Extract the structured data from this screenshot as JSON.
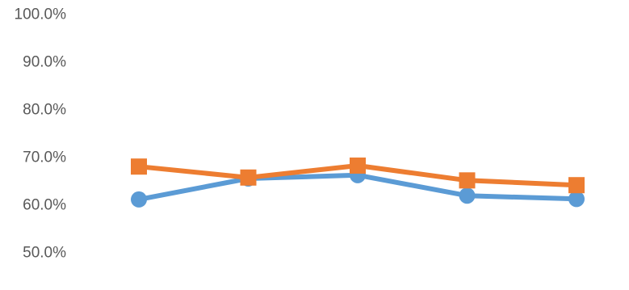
{
  "chart_data": {
    "type": "line",
    "x": [
      1,
      2,
      3,
      4,
      5
    ],
    "ylim": [
      0.5,
      1.0
    ],
    "y_ticks": [
      {
        "value": 1.0,
        "label": "100.0%"
      },
      {
        "value": 0.9,
        "label": "90.0%"
      },
      {
        "value": 0.8,
        "label": "80.0%"
      },
      {
        "value": 0.7,
        "label": "70.0%"
      },
      {
        "value": 0.6,
        "label": "60.0%"
      },
      {
        "value": 0.5,
        "label": "50.0%"
      }
    ],
    "grid": false,
    "legend": "none",
    "series": [
      {
        "color": "#5b9bd5",
        "marker": "circle",
        "values": [
          0.612,
          0.656,
          0.663,
          0.62,
          0.613
        ]
      },
      {
        "color": "#ed7d31",
        "marker": "square",
        "values": [
          0.681,
          0.658,
          0.683,
          0.652,
          0.642
        ]
      }
    ]
  }
}
